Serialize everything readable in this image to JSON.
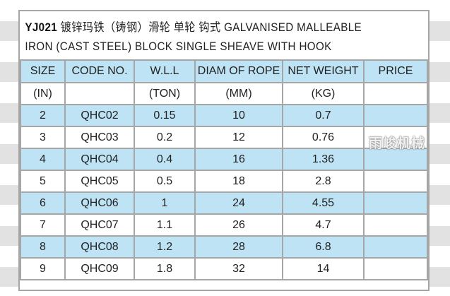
{
  "title": {
    "code": "YJ021",
    "text_line1": "镀锌玛铁（铸钢）滑轮 单轮 钩式 GALVANISED MALLEABLE",
    "text_line2": "IRON (CAST STEEL) BLOCK SINGLE SHEAVE WITH HOOK"
  },
  "columns": [
    "SIZE",
    "CODE NO.",
    "W.L.L",
    "DIAM OF ROPE",
    "NET WEIGHT",
    "PRICE"
  ],
  "units": [
    "(IN)",
    "",
    "(TON)",
    "(MM)",
    "(KG)",
    ""
  ],
  "rows": [
    [
      "2",
      "QHC02",
      "0.15",
      "10",
      "0.7",
      ""
    ],
    [
      "3",
      "QHC03",
      "0.2",
      "12",
      "0.76",
      ""
    ],
    [
      "4",
      "QHC04",
      "0.4",
      "16",
      "1.36",
      ""
    ],
    [
      "5",
      "QHC05",
      "0.5",
      "18",
      "2.8",
      ""
    ],
    [
      "6",
      "QHC06",
      "1",
      "24",
      "4.55",
      ""
    ],
    [
      "7",
      "QHC07",
      "1.1",
      "26",
      "4.7",
      ""
    ],
    [
      "8",
      "QHC08",
      "1.2",
      "28",
      "6.8",
      ""
    ],
    [
      "9",
      "QHC09",
      "1.8",
      "32",
      "14",
      ""
    ]
  ],
  "watermark": "雨峻机械",
  "colors": {
    "header_bg": "#bee3f5",
    "border": "#a6a6a6"
  }
}
